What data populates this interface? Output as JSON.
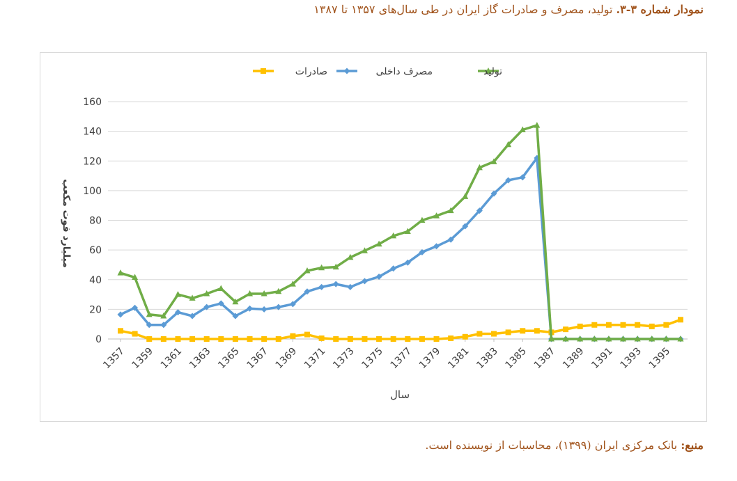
{
  "figure": {
    "caption_label": "نمودار شماره ۳-۳.",
    "caption_text": "تولید، مصرف و صادرات گاز ایران در طی سال‌های ۱۳۵۷ تا ۱۳۸۷",
    "source_label": "منبع:",
    "source_text": "بانک مرکزی ایران (۱۳۹۹)، محاسبات از نویسنده است."
  },
  "colors": {
    "production": "#70ad47",
    "consumption": "#5b9bd5",
    "exports": "#ffc000",
    "grid": "#d9d9d9",
    "axis_text": "#404040",
    "caption": "#a0521a"
  },
  "chart_data": {
    "type": "line",
    "title": "",
    "xlabel": "سال",
    "ylabel": "میلیارد فوت مکعب",
    "ylim": [
      0,
      160
    ],
    "yticks": [
      "0",
      "20",
      "40",
      "60",
      "80",
      "100",
      "120",
      "140",
      "160"
    ],
    "xtick_labels": [
      "1357",
      "1359",
      "1361",
      "1363",
      "1365",
      "1367",
      "1369",
      "1371",
      "1373",
      "1375",
      "1377",
      "1379",
      "1381",
      "1383",
      "1385",
      "1387",
      "1389",
      "1391",
      "1393",
      "1395"
    ],
    "grid": true,
    "legend_position": "top",
    "x": [
      1357,
      1358,
      1359,
      1360,
      1361,
      1362,
      1363,
      1364,
      1365,
      1366,
      1367,
      1368,
      1369,
      1370,
      1371,
      1372,
      1373,
      1374,
      1375,
      1376,
      1377,
      1378,
      1379,
      1380,
      1381,
      1382,
      1383,
      1384,
      1385,
      1386,
      1387,
      1388,
      1389,
      1390,
      1391,
      1392,
      1393,
      1394,
      1395,
      1396
    ],
    "series": [
      {
        "name": "صادرات",
        "color": "#ffc000",
        "marker": "square",
        "values": [
          5.5,
          3.5,
          0,
          0,
          0,
          0,
          0,
          0,
          0,
          0,
          0,
          0,
          2,
          3,
          0.5,
          0,
          0,
          0,
          0,
          0,
          0,
          0,
          0,
          0.5,
          1.5,
          3.5,
          3.5,
          4.5,
          5.5,
          5.5,
          4.5,
          6.5,
          8.5,
          9.5,
          9.5,
          9.5,
          9.5,
          8.5,
          9.5,
          13
        ]
      },
      {
        "name": "مصرف داخلی",
        "color": "#5b9bd5",
        "marker": "diamond",
        "values": [
          16.5,
          21,
          9.5,
          9.5,
          18,
          15.5,
          21.5,
          24,
          15.5,
          20.5,
          20,
          21.5,
          23.5,
          32,
          35,
          37,
          35,
          39,
          42,
          47.5,
          51.5,
          58.5,
          62.5,
          67,
          76,
          86.5,
          98,
          107,
          109,
          122,
          0,
          0,
          0,
          0,
          0,
          0,
          0,
          0,
          0,
          0
        ]
      },
      {
        "name": "تولید",
        "color": "#70ad47",
        "marker": "triangle",
        "values": [
          44.5,
          41.5,
          16.5,
          15.5,
          30,
          27.5,
          30.5,
          34,
          25,
          30.5,
          30.5,
          32,
          37,
          46,
          48,
          48.5,
          55,
          59.5,
          64,
          69.5,
          72.5,
          80,
          83,
          86.5,
          96,
          115.5,
          119.5,
          131,
          141,
          144,
          0,
          0,
          0,
          0,
          0,
          0,
          0,
          0,
          0,
          0
        ]
      }
    ]
  }
}
